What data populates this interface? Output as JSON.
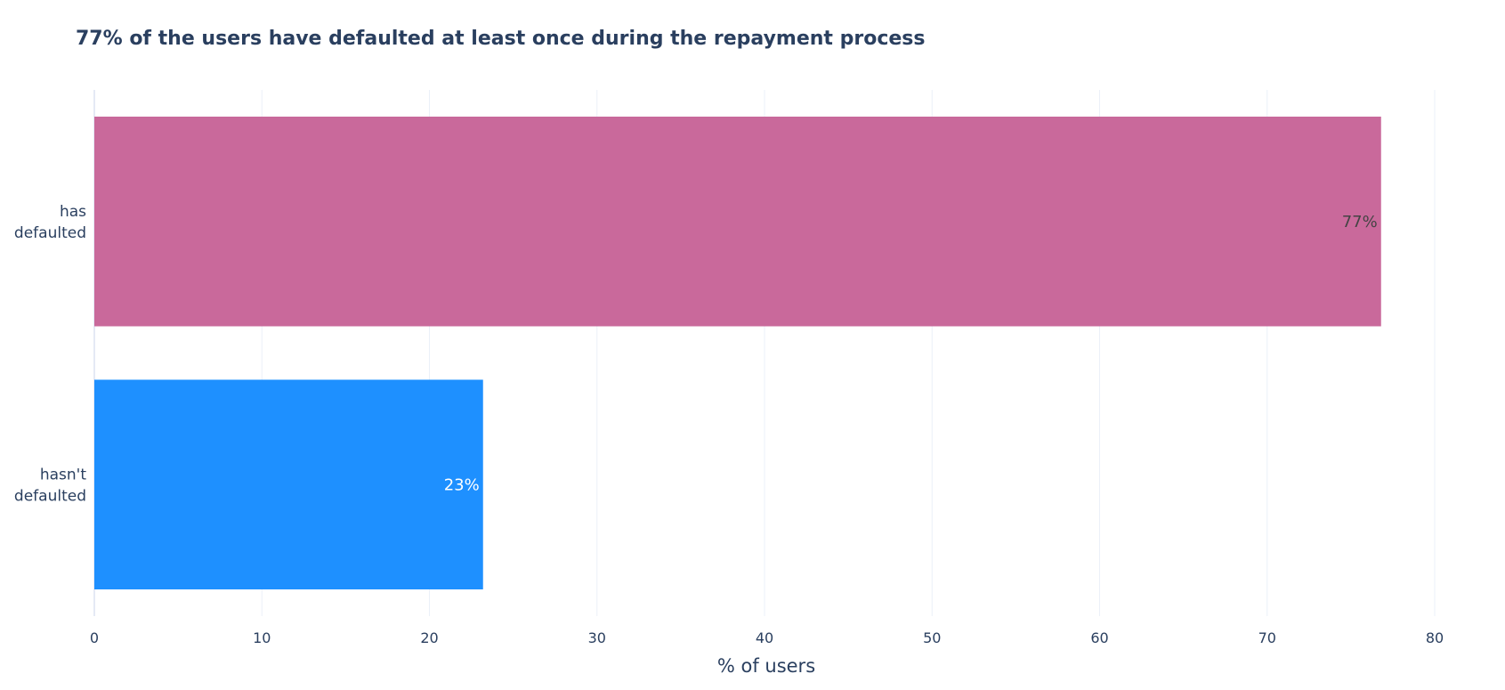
{
  "chart_data": {
    "type": "bar",
    "orientation": "horizontal",
    "title": "77% of the users have defaulted at least once during the repayment process",
    "xlabel": "% of users",
    "ylabel": "",
    "xlim": [
      0,
      80
    ],
    "xticks": [
      "0",
      "10",
      "20",
      "30",
      "40",
      "50",
      "60",
      "70",
      "80"
    ],
    "grid": true,
    "categories": [
      [
        "has",
        "defaulted"
      ],
      [
        "hasn't",
        "defaulted"
      ]
    ],
    "values": [
      76.8,
      23.2
    ],
    "data_labels": [
      "77%",
      "23%"
    ],
    "colors": [
      "#c9699b",
      "#1e90ff"
    ],
    "label_colors": [
      "#444444",
      "#ffffff"
    ],
    "gridline_color": "#ebf0f8",
    "zeroline_color": "#e5e9f5"
  }
}
